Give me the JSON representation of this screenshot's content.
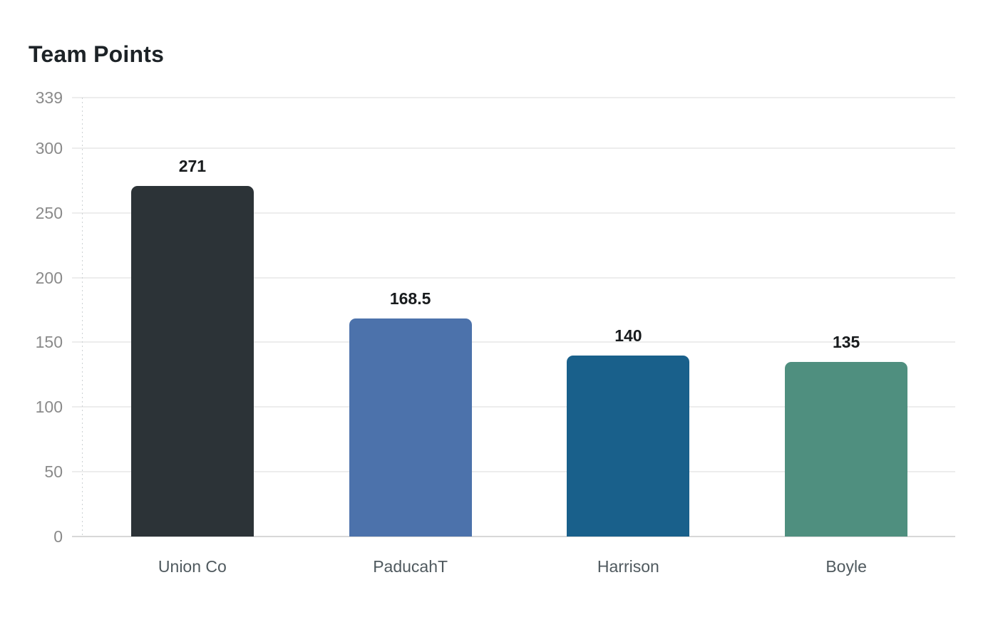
{
  "page": {
    "background": "#ffffff"
  },
  "chart_data": {
    "type": "bar",
    "title": "Team Points",
    "categories": [
      "Union Co",
      "PaducahT",
      "Harrison",
      "Boyle"
    ],
    "values": [
      271,
      168.5,
      140,
      135
    ],
    "value_labels": [
      "271",
      "168.5",
      "140",
      "135"
    ],
    "yticks": [
      339,
      300,
      250,
      200,
      150,
      100,
      50,
      0
    ],
    "ylim": [
      0,
      339
    ],
    "xlabel": "",
    "ylabel": "",
    "grid": true,
    "legend": false,
    "bar_colors": [
      "#2c3337",
      "#4c72ab",
      "#19608b",
      "#4f8f7f"
    ],
    "text_colors": {
      "title": "#1d2327",
      "value_label": "#181b1d",
      "tick_label": "#8a8a8a",
      "category_label": "#4f595e"
    },
    "line_colors": {
      "gridline": "#ededed",
      "baseline": "#d8d8d8",
      "axis_dotted": "#ccd1d3"
    }
  }
}
